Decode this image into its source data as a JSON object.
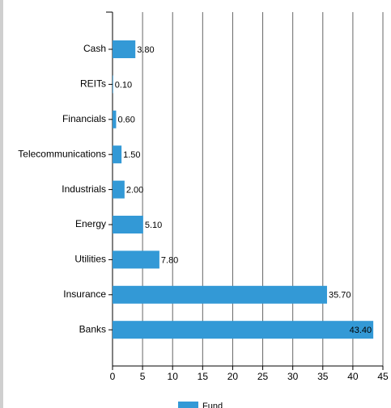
{
  "chart_data": {
    "type": "hbar",
    "categories": [
      "Cash",
      "REITs",
      "Financials",
      "Telecommunications",
      "Industrials",
      "Energy",
      "Utilities",
      "Insurance",
      "Banks"
    ],
    "series": [
      {
        "name": "Fund",
        "color": "#3399d6",
        "values": [
          3.8,
          0.1,
          0.6,
          1.5,
          2.0,
          5.1,
          7.8,
          35.7,
          43.4
        ],
        "value_labels": [
          "3.80",
          "0.10",
          "0.60",
          "1.50",
          "2.00",
          "5.10",
          "7.80",
          "35.70",
          "43.40"
        ]
      }
    ],
    "xlim": [
      0,
      45
    ],
    "xticks": [
      0,
      5,
      10,
      15,
      20,
      25,
      30,
      35,
      40,
      45
    ],
    "grid": true
  }
}
